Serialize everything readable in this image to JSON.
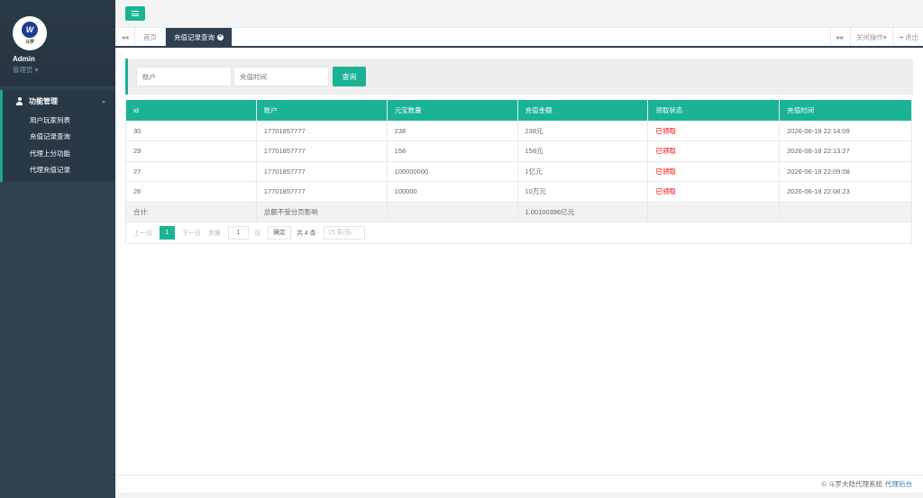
{
  "sidebar": {
    "logo_text": "斗罗",
    "user_name": "Admin",
    "user_role": "管理员",
    "menu_group": "功能管理",
    "items": [
      {
        "label": "用户玩家列表"
      },
      {
        "label": "充值记录查询"
      },
      {
        "label": "代理上分功能"
      },
      {
        "label": "代理充值记录"
      }
    ]
  },
  "tabs": {
    "home": "首页",
    "active": "充值记录查询",
    "close_ops": "关闭操作",
    "logout": "退出"
  },
  "search": {
    "account_placeholder": "账户",
    "time_placeholder": "充值时间",
    "button": "查询"
  },
  "table": {
    "headers": [
      "id",
      "账户",
      "元宝数量",
      "充值金额",
      "领取状态",
      "充值时间"
    ],
    "rows": [
      [
        "30",
        "17701857777",
        "238",
        "238元",
        "已领取",
        "2026-06-18 22:14:09"
      ],
      [
        "29",
        "17701857777",
        "158",
        "158元",
        "已领取",
        "2026-06-18 22:13:27"
      ],
      [
        "27",
        "17701857777",
        "100000000",
        "1亿元",
        "已领取",
        "2026-06-18 22:09:08"
      ],
      [
        "26",
        "17701857777",
        "100000",
        "10万元",
        "已领取",
        "2026-06-18 22:08:23"
      ]
    ],
    "total": {
      "label": "合计:",
      "note": "总额不受分页影响",
      "amount": "1.00100396亿元"
    }
  },
  "pager": {
    "prev": "上一页",
    "current": "1",
    "next": "下一页",
    "goto": "到第",
    "goto_value": "1",
    "page_unit": "页",
    "confirm": "确定",
    "total": "共 4 条",
    "page_size": "15 条/页"
  },
  "footer": {
    "copyright": "© 斗罗大陆代理系统",
    "link": "代理后台"
  },
  "colors": {
    "accent": "#1ab394",
    "sidebar": "#2f4050",
    "status": "#ff0000"
  }
}
